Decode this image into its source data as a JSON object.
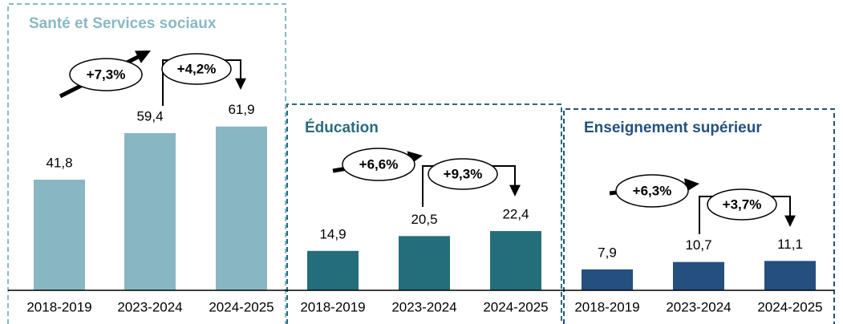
{
  "chart_data": [
    {
      "type": "bar",
      "title": "Santé et Services sociaux",
      "categories": [
        "2018-2019",
        "2023-2024",
        "2024-2025"
      ],
      "values": [
        41.8,
        59.4,
        61.9
      ],
      "value_labels": [
        "41,8",
        "59,4",
        "61,9"
      ],
      "color": "#88b7c3",
      "annotations": [
        "+7,3%",
        "+4,2%"
      ]
    },
    {
      "type": "bar",
      "title": "Éducation",
      "categories": [
        "2018-2019",
        "2023-2024",
        "2024-2025"
      ],
      "values": [
        14.9,
        20.5,
        22.4
      ],
      "value_labels": [
        "14,9",
        "20,5",
        "22,4"
      ],
      "color": "#246e7b",
      "annotations": [
        "+6,6%",
        "+9,3%"
      ]
    },
    {
      "type": "bar",
      "title": "Enseignement supérieur",
      "categories": [
        "2018-2019",
        "2023-2024",
        "2024-2025"
      ],
      "values": [
        7.9,
        10.7,
        11.1
      ],
      "value_labels": [
        "7,9",
        "10,7",
        "11,1"
      ],
      "color": "#254f7f",
      "annotations": [
        "+6,3%",
        "+3,7%"
      ]
    }
  ]
}
